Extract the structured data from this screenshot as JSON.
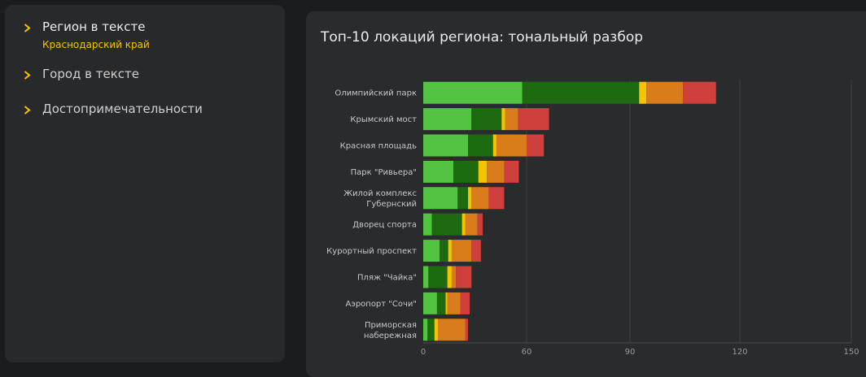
{
  "sidebar": {
    "items": [
      {
        "label": "Регион в тексте",
        "sublabel": "Краснодарский край",
        "active": true
      },
      {
        "label": "Город в тексте"
      },
      {
        "label": "Достопримечательности"
      }
    ]
  },
  "chart_data": {
    "type": "bar",
    "orientation": "horizontal",
    "stacked": true,
    "title": "Топ-10 локаций региона: тональный разбор",
    "xlabel": "",
    "ylabel": "",
    "xlim": [
      0,
      150
    ],
    "xticks": [
      0,
      60,
      90,
      120,
      150
    ],
    "grid": true,
    "legend": "none",
    "categories": [
      "Олимпийский парк",
      "Крымский мост",
      "Красная площадь",
      "Парк \"Ривьера\"",
      "Жилой комплекс Губернский",
      "Дворец спорта",
      "Курортный проспект",
      "Пляж \"Чайка\"",
      "Аэропорт \"Сочи\"",
      "Приморская набережная"
    ],
    "series": [
      {
        "color": "#52c441",
        "values": [
          57.5,
          28,
          26,
          17.5,
          20,
          5,
          9.5,
          3,
          8,
          2.5
        ]
      },
      {
        "color": "#1e6a10",
        "values": [
          35,
          17.5,
          14.5,
          14.5,
          6,
          17.5,
          5,
          11,
          5,
          4
        ]
      },
      {
        "color": "#f5c400",
        "values": [
          2,
          2,
          2,
          5,
          2,
          2,
          2,
          2.5,
          1,
          2
        ]
      },
      {
        "color": "#d87c1c",
        "values": [
          10,
          7.5,
          17.5,
          10,
          10,
          7,
          11.5,
          2.5,
          7.5,
          16
        ]
      },
      {
        "color": "#cf3f3c",
        "values": [
          9,
          11.5,
          5,
          8.5,
          9,
          3,
          5.5,
          9,
          5.5,
          1.5
        ]
      }
    ]
  }
}
